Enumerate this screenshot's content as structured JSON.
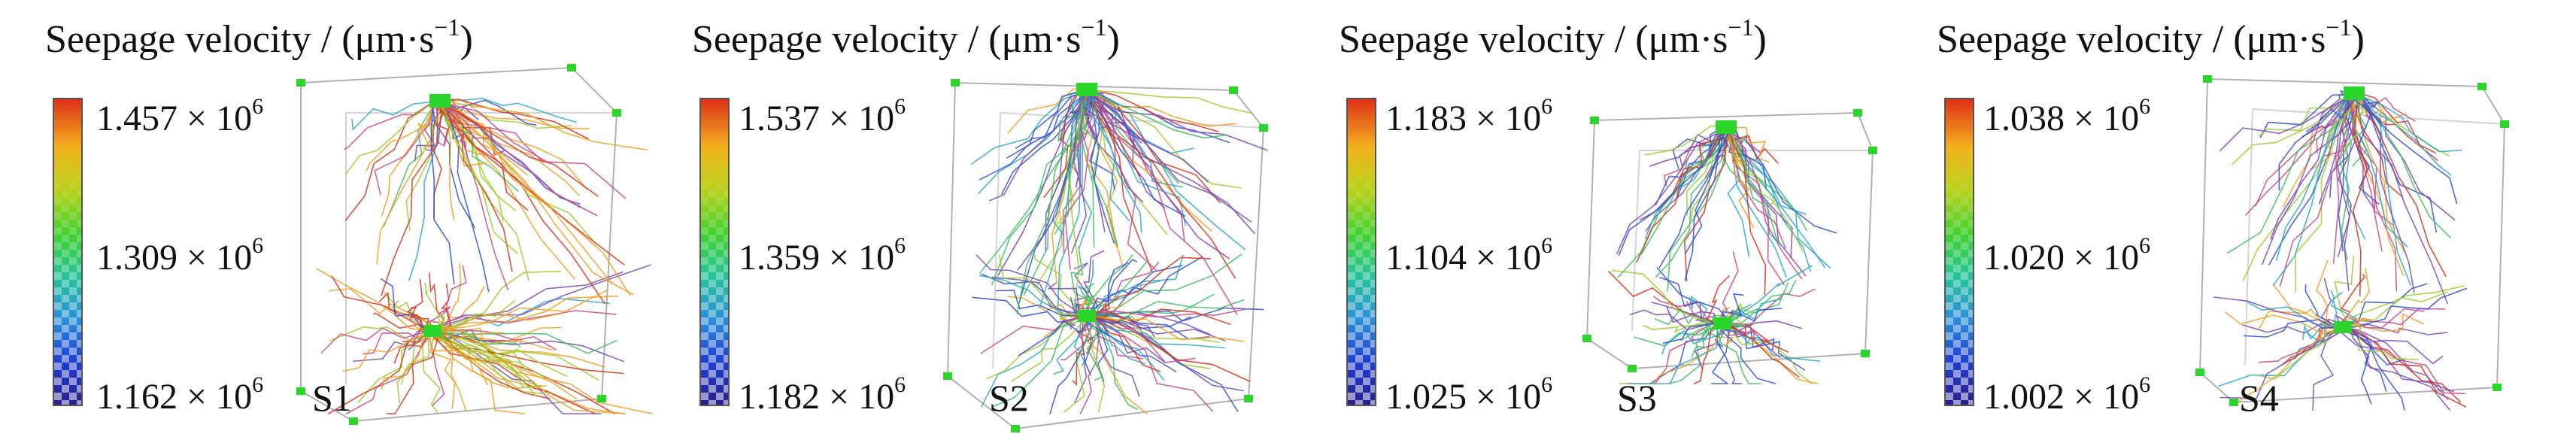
{
  "panels": [
    {
      "title_main": "Seepage velocity / (μm·s",
      "title_sup": "−1",
      "title_end": ")",
      "ticks": [
        {
          "mantissa": "1.457 × 10",
          "exp": "6"
        },
        {
          "mantissa": "1.309 × 10",
          "exp": "6"
        },
        {
          "mantissa": "1.162 × 10",
          "exp": "6"
        }
      ],
      "sample_label": "S1"
    },
    {
      "title_main": "Seepage velocity / (μm·s",
      "title_sup": "−1",
      "title_end": ")",
      "ticks": [
        {
          "mantissa": "1.537 × 10",
          "exp": "6"
        },
        {
          "mantissa": "1.359 × 10",
          "exp": "6"
        },
        {
          "mantissa": "1.182 × 10",
          "exp": "6"
        }
      ],
      "sample_label": "S2"
    },
    {
      "title_main": "Seepage velocity / (μm·s",
      "title_sup": "−1",
      "title_end": ")",
      "ticks": [
        {
          "mantissa": "1.183 × 10",
          "exp": "6"
        },
        {
          "mantissa": "1.104 × 10",
          "exp": "6"
        },
        {
          "mantissa": "1.025 × 10",
          "exp": "6"
        }
      ],
      "sample_label": "S3"
    },
    {
      "title_main": "Seepage velocity / (μm·s",
      "title_sup": "−1",
      "title_end": ")",
      "ticks": [
        {
          "mantissa": "1.038 × 10",
          "exp": "6"
        },
        {
          "mantissa": "1.020 × 10",
          "exp": "6"
        },
        {
          "mantissa": "1.002 × 10",
          "exp": "6"
        }
      ],
      "sample_label": "S4"
    }
  ],
  "colors": {
    "streamline_palette": [
      "#d8301c",
      "#f0a020",
      "#9ccc2a",
      "#3cc060",
      "#2aa8c8",
      "#3050d0",
      "#7a4ab0",
      "#c84a8a"
    ],
    "marker_green": "#2bd62b",
    "box_edge": "#b0b0b0"
  }
}
